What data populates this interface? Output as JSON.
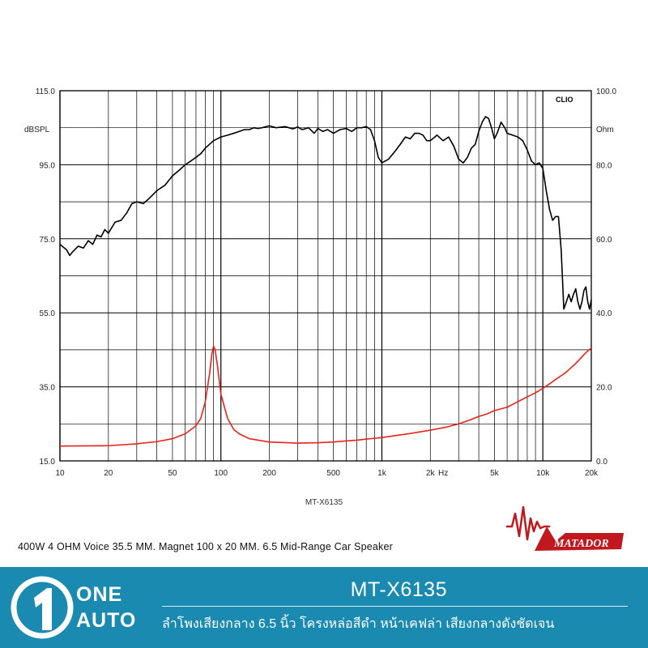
{
  "chart_data": {
    "type": "line",
    "brand": "CLIO",
    "left_axis": {
      "unit": "dBSPL",
      "ylim": [
        15,
        115
      ],
      "ticks": [
        {
          "value": 115,
          "label": "115.0"
        },
        {
          "value": 95,
          "label": "95.0"
        },
        {
          "value": 75,
          "label": "75.0"
        },
        {
          "value": 55,
          "label": "55.0"
        },
        {
          "value": 35,
          "label": "35.0"
        },
        {
          "value": 15,
          "label": "15.0"
        }
      ]
    },
    "right_axis": {
      "unit": "Ohm",
      "ylim": [
        0,
        100
      ],
      "ticks": [
        {
          "value": 100,
          "label": "100.0"
        },
        {
          "value": 80,
          "label": "80.0"
        },
        {
          "value": 60,
          "label": "60.0"
        },
        {
          "value": 40,
          "label": "40.0"
        },
        {
          "value": 20,
          "label": "20.0"
        },
        {
          "value": 0,
          "label": "0.0"
        }
      ]
    },
    "x_axis": {
      "scale": "log",
      "unit": "Hz",
      "xlim": [
        10,
        20000
      ],
      "ticks": [
        {
          "value": 10,
          "label": "10"
        },
        {
          "value": 20,
          "label": "20"
        },
        {
          "value": 50,
          "label": "50"
        },
        {
          "value": 100,
          "label": "100"
        },
        {
          "value": 200,
          "label": "200"
        },
        {
          "value": 500,
          "label": "500"
        },
        {
          "value": 1000,
          "label": "1k"
        },
        {
          "value": 2000,
          "label": "2k"
        },
        {
          "value": 5000,
          "label": "5k"
        },
        {
          "value": 10000,
          "label": "10k"
        },
        {
          "value": 20000,
          "label": "20k"
        }
      ]
    },
    "grid": true,
    "caption": "MT-X6135",
    "series": [
      {
        "axis": "left",
        "color": "#000000",
        "points": [
          [
            10,
            73.5
          ],
          [
            11,
            72
          ],
          [
            11.5,
            70.5
          ],
          [
            12,
            71.5
          ],
          [
            13,
            73
          ],
          [
            14,
            72.5
          ],
          [
            15,
            74.5
          ],
          [
            16,
            73.5
          ],
          [
            17,
            76
          ],
          [
            18,
            75.5
          ],
          [
            19,
            77.5
          ],
          [
            20,
            76.5
          ],
          [
            22,
            79.5
          ],
          [
            24,
            80
          ],
          [
            26,
            82
          ],
          [
            28,
            84.5
          ],
          [
            30,
            85
          ],
          [
            33,
            84.5
          ],
          [
            36,
            86
          ],
          [
            40,
            88
          ],
          [
            45,
            89.5
          ],
          [
            50,
            92
          ],
          [
            55,
            93.5
          ],
          [
            60,
            95
          ],
          [
            65,
            96
          ],
          [
            70,
            97
          ],
          [
            75,
            98
          ],
          [
            80,
            99.5
          ],
          [
            90,
            101.5
          ],
          [
            100,
            102.5
          ],
          [
            110,
            103
          ],
          [
            120,
            103.5
          ],
          [
            130,
            104
          ],
          [
            140,
            104.5
          ],
          [
            150,
            104.5
          ],
          [
            160,
            105
          ],
          [
            170,
            104.8
          ],
          [
            180,
            105
          ],
          [
            200,
            105.5
          ],
          [
            220,
            105
          ],
          [
            250,
            105.3
          ],
          [
            280,
            104.7
          ],
          [
            300,
            105.2
          ],
          [
            320,
            104.5
          ],
          [
            350,
            105
          ],
          [
            380,
            103.5
          ],
          [
            400,
            104.8
          ],
          [
            430,
            104
          ],
          [
            460,
            104.5
          ],
          [
            500,
            103.5
          ],
          [
            550,
            104.5
          ],
          [
            600,
            104.8
          ],
          [
            650,
            104
          ],
          [
            700,
            105
          ],
          [
            750,
            105
          ],
          [
            800,
            105.3
          ],
          [
            850,
            104.5
          ],
          [
            900,
            101.5
          ],
          [
            950,
            97
          ],
          [
            1000,
            95.5
          ],
          [
            1100,
            96.5
          ],
          [
            1200,
            98.5
          ],
          [
            1300,
            100.5
          ],
          [
            1400,
            102.5
          ],
          [
            1500,
            102
          ],
          [
            1600,
            103.5
          ],
          [
            1700,
            103.5
          ],
          [
            1800,
            103
          ],
          [
            1900,
            101.5
          ],
          [
            2000,
            101.5
          ],
          [
            2200,
            103
          ],
          [
            2400,
            101.5
          ],
          [
            2600,
            102.5
          ],
          [
            2800,
            100
          ],
          [
            3000,
            96.5
          ],
          [
            3200,
            95.5
          ],
          [
            3400,
            97
          ],
          [
            3600,
            99.5
          ],
          [
            3800,
            100.5
          ],
          [
            4000,
            104
          ],
          [
            4200,
            106.5
          ],
          [
            4400,
            108
          ],
          [
            4600,
            107.5
          ],
          [
            4800,
            105
          ],
          [
            5000,
            102
          ],
          [
            5200,
            103.5
          ],
          [
            5500,
            106.5
          ],
          [
            5800,
            105
          ],
          [
            6000,
            103.5
          ],
          [
            6500,
            103
          ],
          [
            7000,
            102.5
          ],
          [
            7500,
            101.5
          ],
          [
            8000,
            99
          ],
          [
            8500,
            96
          ],
          [
            9000,
            95
          ],
          [
            9500,
            95.5
          ],
          [
            10000,
            94
          ],
          [
            10500,
            88
          ],
          [
            11000,
            83
          ],
          [
            11500,
            80
          ],
          [
            12000,
            81
          ],
          [
            12500,
            81
          ],
          [
            13000,
            72
          ],
          [
            13500,
            56
          ],
          [
            14000,
            58
          ],
          [
            14500,
            60
          ],
          [
            15000,
            58
          ],
          [
            15500,
            60
          ],
          [
            16000,
            61.5
          ],
          [
            16500,
            58
          ],
          [
            17000,
            56
          ],
          [
            17500,
            58
          ],
          [
            18000,
            61
          ],
          [
            18500,
            62
          ],
          [
            19000,
            58
          ],
          [
            19500,
            56
          ],
          [
            20000,
            58.5
          ]
        ]
      },
      {
        "axis": "right",
        "color": "#e8231b",
        "points": [
          [
            10,
            4
          ],
          [
            20,
            4.1
          ],
          [
            30,
            4.6
          ],
          [
            40,
            5.2
          ],
          [
            50,
            6
          ],
          [
            60,
            7.3
          ],
          [
            70,
            9.5
          ],
          [
            75,
            11.5
          ],
          [
            80,
            16
          ],
          [
            85,
            23.5
          ],
          [
            88,
            29
          ],
          [
            90,
            31
          ],
          [
            92,
            30
          ],
          [
            95,
            26
          ],
          [
            100,
            18
          ],
          [
            110,
            11.5
          ],
          [
            120,
            8.5
          ],
          [
            130,
            7.3
          ],
          [
            150,
            6
          ],
          [
            200,
            5.1
          ],
          [
            300,
            4.8
          ],
          [
            400,
            4.9
          ],
          [
            500,
            5.1
          ],
          [
            600,
            5.4
          ],
          [
            700,
            5.6
          ],
          [
            800,
            5.9
          ],
          [
            900,
            6.1
          ],
          [
            1000,
            6.3
          ],
          [
            1200,
            6.8
          ],
          [
            1500,
            7.4
          ],
          [
            2000,
            8.3
          ],
          [
            2500,
            9.1
          ],
          [
            3000,
            10
          ],
          [
            3500,
            11
          ],
          [
            4000,
            12
          ],
          [
            4500,
            12.7
          ],
          [
            5000,
            13.6
          ],
          [
            6000,
            14.5
          ],
          [
            7000,
            16
          ],
          [
            8000,
            17.3
          ],
          [
            9000,
            18.4
          ],
          [
            10000,
            19.6
          ],
          [
            11000,
            20.8
          ],
          [
            12000,
            22
          ],
          [
            13000,
            23
          ],
          [
            14000,
            24
          ],
          [
            15000,
            25.2
          ],
          [
            16000,
            26.3
          ],
          [
            17000,
            27.5
          ],
          [
            18000,
            28.7
          ],
          [
            19000,
            29.7
          ],
          [
            20000,
            30.5
          ]
        ]
      }
    ]
  },
  "spec_text": "400W 4 OHM Voice 35.5 MM. Magnet 100 x 20 MM. 6.5 Mid-Range Car Speaker",
  "brand_logo": {
    "text": "MATADOR",
    "color": "#c0181e"
  },
  "footer": {
    "background": "#1b8ab0",
    "logo_line1": "ONE",
    "logo_line2": "AUTO",
    "model": "MT-X6135",
    "description": "ลำโพงเสียงกลาง 6.5 นิ้ว โครงหล่อสีดำ หน้าเคฟล่า เสียงกลางดังชัดเจน"
  }
}
